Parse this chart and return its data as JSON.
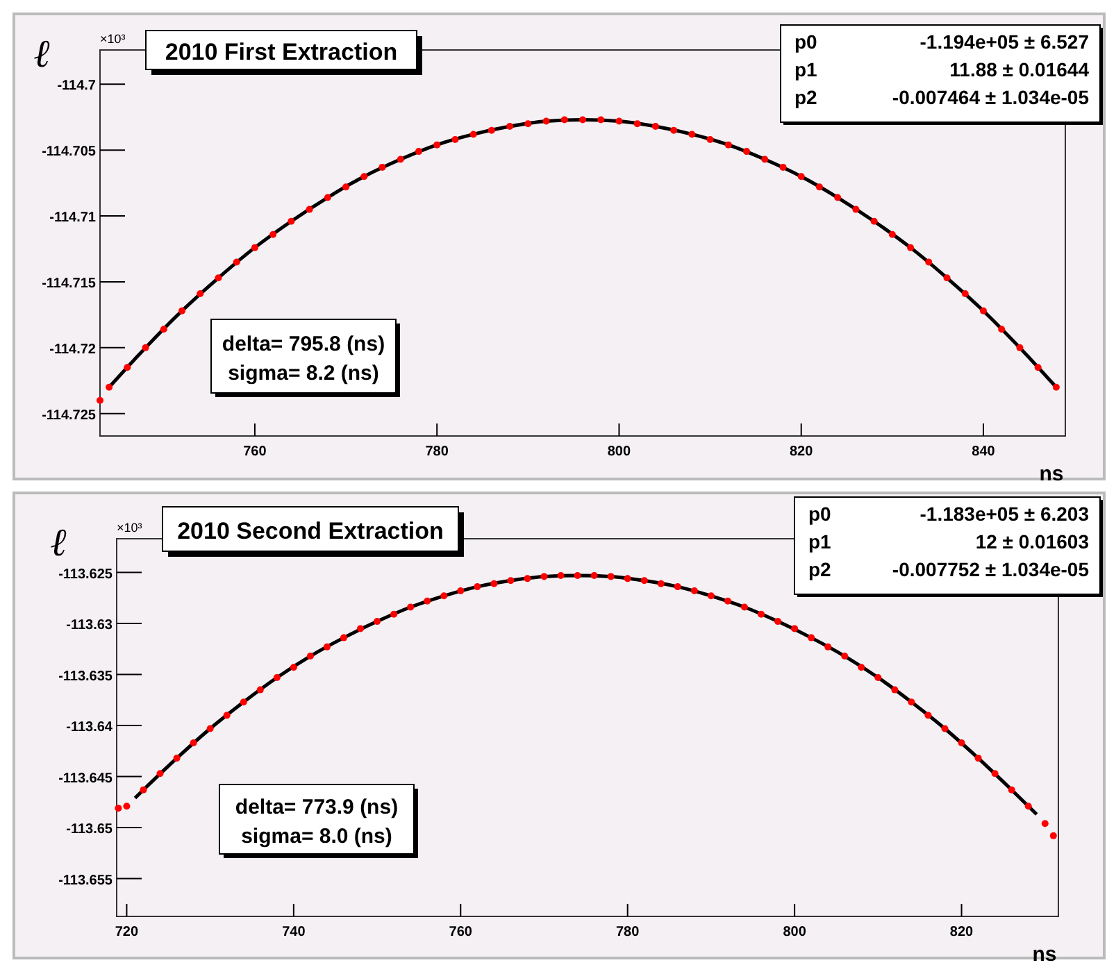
{
  "chart_data": [
    {
      "type": "scatter",
      "title": "2010 First Extraction",
      "xlabel": "ns",
      "ylabel": "ℓ",
      "xlim": [
        743,
        849
      ],
      "ylim": [
        -114.7267,
        -114.6974
      ],
      "xticks": [
        760,
        780,
        800,
        820,
        840
      ],
      "yticks": [
        -114.725,
        -114.72,
        -114.715,
        -114.71,
        -114.705,
        -114.7
      ],
      "grid": false,
      "annotations": [
        "×10³",
        "delta= 795.8 (ns)",
        "sigma= 8.2 (ns)",
        "p0 -1.194e+05 ± 6.527",
        "p1 11.88 ± 0.01644",
        "p2 -0.007464 ± 1.034e-05"
      ],
      "series": [
        {
          "marker": "circle",
          "color": "#ff0000",
          "x": [
            743,
            744,
            746,
            748,
            750,
            752,
            754,
            756,
            758,
            760,
            762,
            764,
            766,
            768,
            770,
            772,
            774,
            776,
            778,
            780,
            782,
            784,
            786,
            788,
            790,
            792,
            794,
            796,
            798,
            800,
            802,
            804,
            806,
            808,
            810,
            812,
            814,
            816,
            818,
            820,
            822,
            824,
            826,
            828,
            830,
            832,
            834,
            836,
            838,
            840,
            842,
            844,
            846,
            848
          ],
          "values": [
            -114.724,
            -114.723,
            -114.7215,
            -114.72,
            -114.7186,
            -114.7172,
            -114.7159,
            -114.7147,
            -114.7135,
            -114.7124,
            -114.7114,
            -114.7104,
            -114.7095,
            -114.7086,
            -114.7078,
            -114.707,
            -114.7063,
            -114.7057,
            -114.7051,
            -114.7046,
            -114.7042,
            -114.7038,
            -114.7035,
            -114.7032,
            -114.703,
            -114.7028,
            -114.7027,
            -114.7027,
            -114.7027,
            -114.7028,
            -114.703,
            -114.7032,
            -114.7035,
            -114.7038,
            -114.7042,
            -114.7046,
            -114.7051,
            -114.7057,
            -114.7063,
            -114.707,
            -114.7078,
            -114.7086,
            -114.7095,
            -114.7104,
            -114.7114,
            -114.7124,
            -114.7135,
            -114.7147,
            -114.7159,
            -114.7172,
            -114.7186,
            -114.72,
            -114.7215,
            -114.723
          ]
        },
        {
          "type": "line",
          "marker": "none",
          "color": "#000000",
          "x": [
            744,
            748,
            752,
            756,
            760,
            764,
            768,
            772,
            776,
            780,
            784,
            788,
            792,
            796,
            800,
            804,
            808,
            812,
            816,
            820,
            824,
            828,
            832,
            836,
            840,
            844,
            848
          ],
          "values": [
            -114.723,
            -114.72,
            -114.7172,
            -114.7147,
            -114.7124,
            -114.7104,
            -114.7086,
            -114.707,
            -114.7057,
            -114.7046,
            -114.7038,
            -114.7032,
            -114.7028,
            -114.7027,
            -114.7028,
            -114.7032,
            -114.7038,
            -114.7046,
            -114.7057,
            -114.707,
            -114.7086,
            -114.7104,
            -114.7124,
            -114.7147,
            -114.7172,
            -114.72,
            -114.723
          ]
        }
      ]
    },
    {
      "type": "scatter",
      "title": "2010 Second Extraction",
      "xlabel": "ns",
      "ylabel": "ℓ",
      "xlim": [
        718.8,
        831.6
      ],
      "ylim": [
        -113.6587,
        -113.6217
      ],
      "xticks": [
        720,
        740,
        760,
        780,
        800,
        820
      ],
      "yticks": [
        -113.655,
        -113.65,
        -113.645,
        -113.64,
        -113.635,
        -113.63,
        -113.625
      ],
      "grid": false,
      "annotations": [
        "×10³",
        "delta= 773.9 (ns)",
        "sigma= 8.0 (ns)",
        "p0 -1.183e+05 ± 6.203",
        "p1 12 ± 0.01603",
        "p2 -0.007752 ± 1.034e-05"
      ],
      "series": [
        {
          "marker": "circle",
          "color": "#ff0000",
          "x": [
            719,
            720,
            722,
            724,
            726,
            728,
            730,
            732,
            734,
            736,
            738,
            740,
            742,
            744,
            746,
            748,
            750,
            752,
            754,
            756,
            758,
            760,
            762,
            764,
            766,
            768,
            770,
            772,
            774,
            776,
            778,
            780,
            782,
            784,
            786,
            788,
            790,
            792,
            794,
            796,
            798,
            800,
            802,
            804,
            806,
            808,
            810,
            812,
            814,
            816,
            818,
            820,
            822,
            824,
            826,
            828,
            830,
            831
          ],
          "values": [
            -113.6481,
            -113.6479,
            -113.6463,
            -113.6447,
            -113.6432,
            -113.6417,
            -113.6403,
            -113.639,
            -113.6377,
            -113.6365,
            -113.6353,
            -113.6343,
            -113.6332,
            -113.6323,
            -113.6314,
            -113.6305,
            -113.6298,
            -113.6291,
            -113.6284,
            -113.6278,
            -113.6273,
            -113.6268,
            -113.6264,
            -113.6261,
            -113.6258,
            -113.6256,
            -113.6254,
            -113.6253,
            -113.6253,
            -113.6253,
            -113.6254,
            -113.6256,
            -113.6258,
            -113.6261,
            -113.6264,
            -113.6268,
            -113.6273,
            -113.6278,
            -113.6284,
            -113.6291,
            -113.6298,
            -113.6305,
            -113.6314,
            -113.6323,
            -113.6332,
            -113.6343,
            -113.6353,
            -113.6365,
            -113.6377,
            -113.639,
            -113.6403,
            -113.6417,
            -113.6432,
            -113.6447,
            -113.6463,
            -113.6479,
            -113.6496,
            -113.6508
          ]
        },
        {
          "type": "line",
          "marker": "none",
          "color": "#000000",
          "x": [
            721,
            722,
            726,
            730,
            734,
            738,
            742,
            746,
            750,
            754,
            758,
            762,
            766,
            770,
            774,
            778,
            782,
            786,
            790,
            794,
            798,
            802,
            806,
            810,
            814,
            818,
            822,
            826,
            829
          ],
          "values": [
            -113.6471,
            -113.6463,
            -113.6432,
            -113.6403,
            -113.6377,
            -113.6353,
            -113.6332,
            -113.6314,
            -113.6298,
            -113.6284,
            -113.6273,
            -113.6264,
            -113.6258,
            -113.6254,
            -113.6253,
            -113.6254,
            -113.6258,
            -113.6264,
            -113.6273,
            -113.6284,
            -113.6298,
            -113.6314,
            -113.6332,
            -113.6353,
            -113.6377,
            -113.6403,
            -113.6432,
            -113.6463,
            -113.6487
          ]
        }
      ]
    }
  ]
}
